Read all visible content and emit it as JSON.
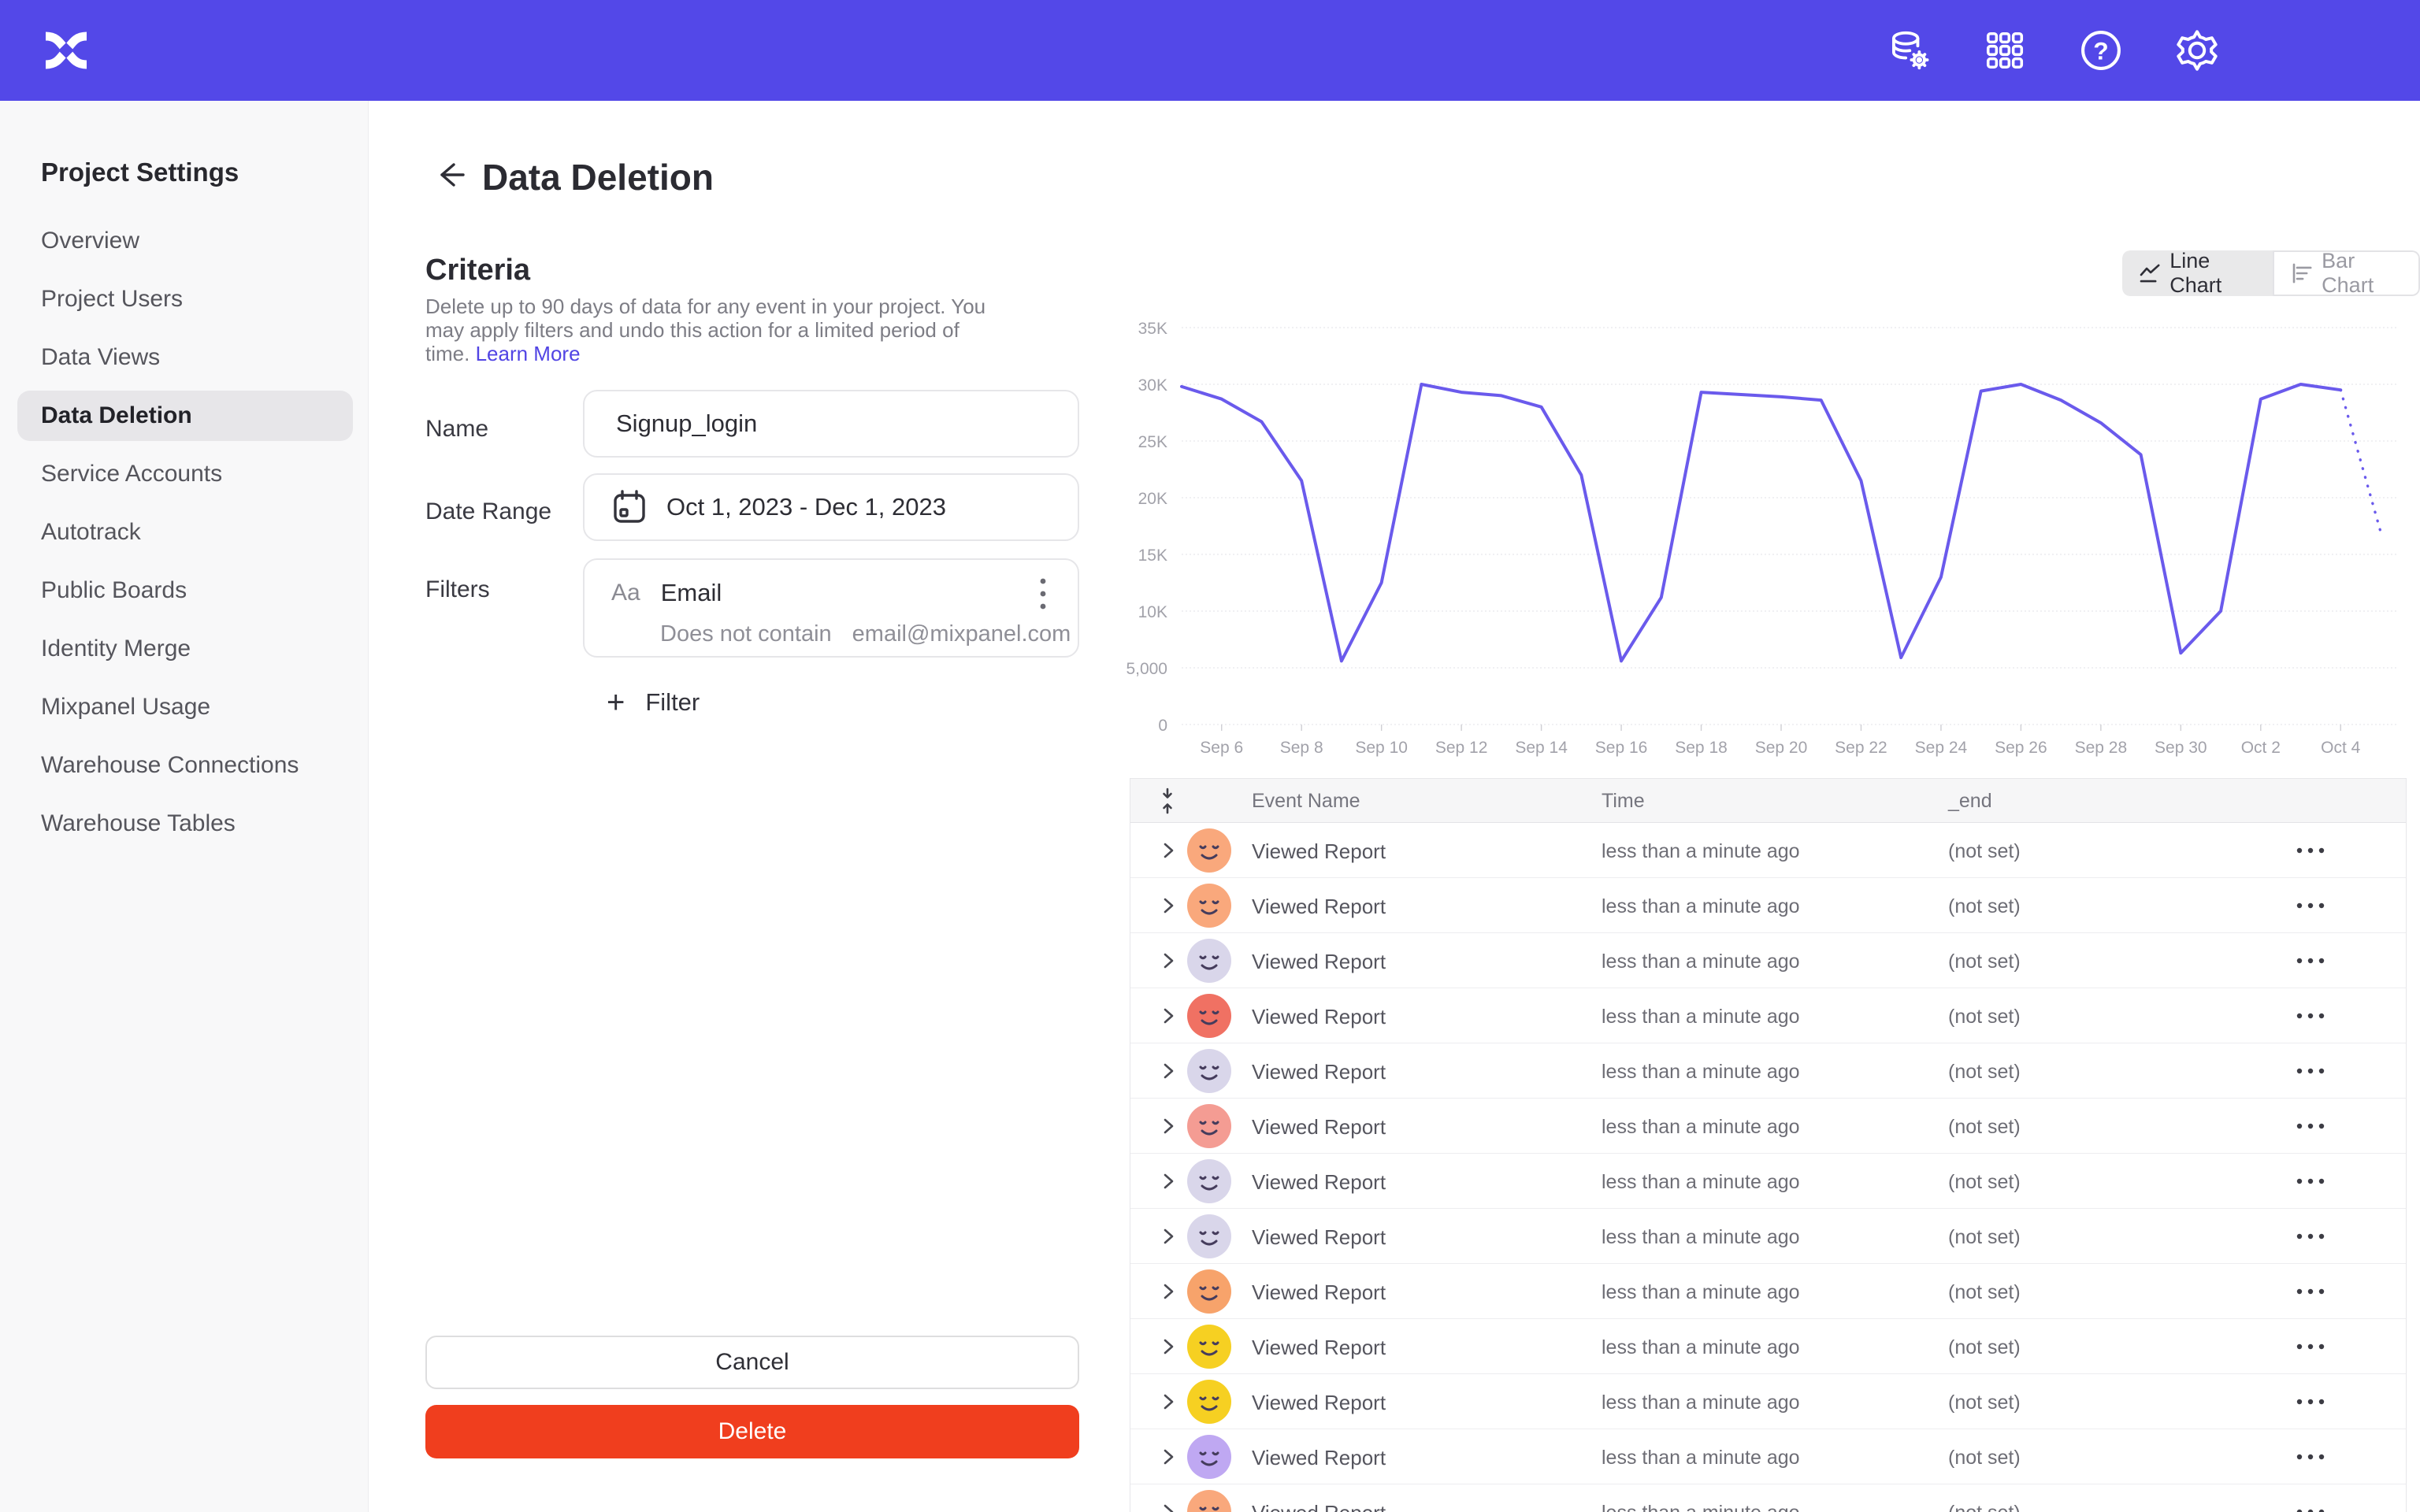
{
  "header": {
    "logo_name": "mixpanel-logo",
    "icons": [
      {
        "name": "data-management-icon"
      },
      {
        "name": "apps-grid-icon"
      },
      {
        "name": "help-icon"
      },
      {
        "name": "settings-gear-icon"
      }
    ]
  },
  "sidebar": {
    "title": "Project Settings",
    "items": [
      {
        "label": "Overview",
        "active": false
      },
      {
        "label": "Project Users",
        "active": false
      },
      {
        "label": "Data Views",
        "active": false
      },
      {
        "label": "Data Deletion",
        "active": true
      },
      {
        "label": "Service Accounts",
        "active": false
      },
      {
        "label": "Autotrack",
        "active": false
      },
      {
        "label": "Public Boards",
        "active": false
      },
      {
        "label": "Identity Merge",
        "active": false
      },
      {
        "label": "Mixpanel Usage",
        "active": false
      },
      {
        "label": "Warehouse Connections",
        "active": false
      },
      {
        "label": "Warehouse Tables",
        "active": false
      }
    ]
  },
  "page": {
    "title": "Data Deletion"
  },
  "criteria": {
    "heading": "Criteria",
    "description": "Delete up to 90 days of data for any event in your project. You may apply filters and undo this action for a limited period of time.",
    "learn_more_label": "Learn More",
    "name_label": "Name",
    "name_value": "Signup_login",
    "date_range_label": "Date Range",
    "date_range_value": "Oct 1, 2023 - Dec 1, 2023",
    "filters_label": "Filters",
    "filter": {
      "type_badge": "Aa",
      "property": "Email",
      "operator": "Does not contain",
      "value": "email@mixpanel.com"
    },
    "add_filter_label": "Filter",
    "cancel_label": "Cancel",
    "delete_label": "Delete"
  },
  "chart_toggle": {
    "line_label": "Line Chart",
    "bar_label": "Bar Chart",
    "active": "line"
  },
  "chart_data": {
    "type": "line",
    "title": "",
    "xlabel": "",
    "ylabel": "",
    "ylim": [
      0,
      35000
    ],
    "grid": true,
    "legend_position": "none",
    "line_color": "#6A5AEC",
    "x": [
      "Sep 5",
      "Sep 6",
      "Sep 7",
      "Sep 8",
      "Sep 9",
      "Sep 10",
      "Sep 11",
      "Sep 12",
      "Sep 13",
      "Sep 14",
      "Sep 15",
      "Sep 16",
      "Sep 17",
      "Sep 18",
      "Sep 19",
      "Sep 20",
      "Sep 21",
      "Sep 22",
      "Sep 23",
      "Sep 24",
      "Sep 25",
      "Sep 26",
      "Sep 27",
      "Sep 28",
      "Sep 29",
      "Sep 30",
      "Oct 1",
      "Oct 2",
      "Oct 3",
      "Oct 4",
      "Oct 5"
    ],
    "values": [
      29800,
      28700,
      26700,
      21500,
      5600,
      12500,
      30000,
      29300,
      29000,
      28000,
      22000,
      5600,
      11200,
      29300,
      29100,
      28900,
      28600,
      21500,
      5900,
      13000,
      29400,
      30000,
      28600,
      26600,
      23800,
      6300,
      10000,
      28700,
      30000,
      29500,
      17000
    ],
    "dashed_tail_points": 1,
    "x_tick_labels": [
      "Sep 6",
      "Sep 8",
      "Sep 10",
      "Sep 12",
      "Sep 14",
      "Sep 16",
      "Sep 18",
      "Sep 20",
      "Sep 22",
      "Sep 24",
      "Sep 26",
      "Sep 28",
      "Sep 30",
      "Oct 2",
      "Oct 4"
    ],
    "y_tick_labels": [
      "0",
      "5,000",
      "10K",
      "15K",
      "20K",
      "25K",
      "30K",
      "35K"
    ],
    "y_tick_values": [
      0,
      5000,
      10000,
      15000,
      20000,
      25000,
      30000,
      35000
    ]
  },
  "table": {
    "columns": [
      "Event Name",
      "Time",
      "_end"
    ],
    "rows": [
      {
        "event": "Viewed Report",
        "time": "less than a minute ago",
        "end": "(not set)",
        "avatar_color": "#F9A87C"
      },
      {
        "event": "Viewed Report",
        "time": "less than a minute ago",
        "end": "(not set)",
        "avatar_color": "#F9A87C"
      },
      {
        "event": "Viewed Report",
        "time": "less than a minute ago",
        "end": "(not set)",
        "avatar_color": "#D9D6EA"
      },
      {
        "event": "Viewed Report",
        "time": "less than a minute ago",
        "end": "(not set)",
        "avatar_color": "#F07163"
      },
      {
        "event": "Viewed Report",
        "time": "less than a minute ago",
        "end": "(not set)",
        "avatar_color": "#D9D6EA"
      },
      {
        "event": "Viewed Report",
        "time": "less than a minute ago",
        "end": "(not set)",
        "avatar_color": "#F49C93"
      },
      {
        "event": "Viewed Report",
        "time": "less than a minute ago",
        "end": "(not set)",
        "avatar_color": "#D9D6EA"
      },
      {
        "event": "Viewed Report",
        "time": "less than a minute ago",
        "end": "(not set)",
        "avatar_color": "#D9D6EA"
      },
      {
        "event": "Viewed Report",
        "time": "less than a minute ago",
        "end": "(not set)",
        "avatar_color": "#F7A36B"
      },
      {
        "event": "Viewed Report",
        "time": "less than a minute ago",
        "end": "(not set)",
        "avatar_color": "#F6D022"
      },
      {
        "event": "Viewed Report",
        "time": "less than a minute ago",
        "end": "(not set)",
        "avatar_color": "#F6D022"
      },
      {
        "event": "Viewed Report",
        "time": "less than a minute ago",
        "end": "(not set)",
        "avatar_color": "#BFA8F2"
      },
      {
        "event": "Viewed Report",
        "time": "less than a minute ago",
        "end": "(not set)",
        "avatar_color": "#F9A87C"
      }
    ]
  },
  "colors": {
    "brand_purple": "#5348E8",
    "chart_line": "#6A5AEC",
    "delete_red": "#F03E1E",
    "link": "#5144E4"
  }
}
